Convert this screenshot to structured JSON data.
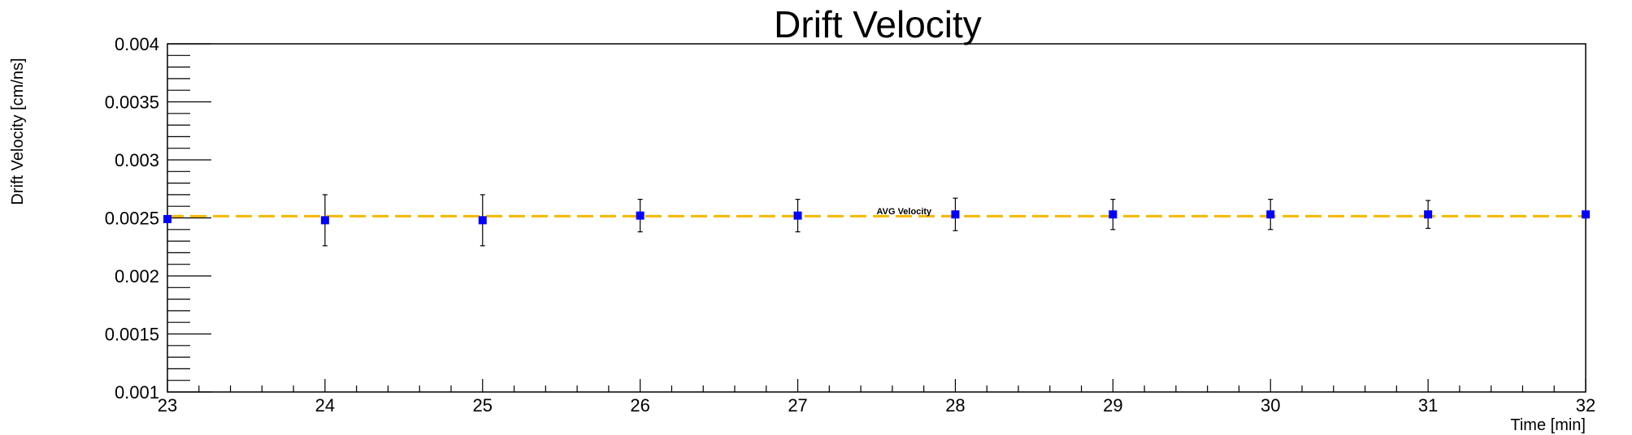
{
  "chart_data": {
    "type": "scatter",
    "title": "Drift Velocity",
    "xlabel": "Time [min]",
    "ylabel": "Drift Velocity [cm/ns]",
    "xlim": [
      23,
      32
    ],
    "ylim": [
      0.001,
      0.004
    ],
    "x_ticks": [
      "23",
      "24",
      "25",
      "26",
      "27",
      "28",
      "29",
      "30",
      "31",
      "32"
    ],
    "y_ticks": [
      "0.001",
      "0.0015",
      "0.002",
      "0.0025",
      "0.003",
      "0.0035",
      "0.004"
    ],
    "grid": false,
    "series": [
      {
        "marker": "square",
        "color": "#0000ff",
        "points": [
          {
            "x": 23,
            "y": 0.00249,
            "err": 0.0
          },
          {
            "x": 24,
            "y": 0.00248,
            "err": 0.00022
          },
          {
            "x": 25,
            "y": 0.00248,
            "err": 0.00022
          },
          {
            "x": 26,
            "y": 0.00252,
            "err": 0.00014
          },
          {
            "x": 27,
            "y": 0.00252,
            "err": 0.00014
          },
          {
            "x": 28,
            "y": 0.00253,
            "err": 0.00014
          },
          {
            "x": 29,
            "y": 0.00253,
            "err": 0.00013
          },
          {
            "x": 30,
            "y": 0.00253,
            "err": 0.00013
          },
          {
            "x": 31,
            "y": 0.00253,
            "err": 0.00012
          },
          {
            "x": 32,
            "y": 0.00253,
            "err": 0.0
          }
        ]
      }
    ],
    "reference_line": {
      "y": 0.002515,
      "style": "dashed",
      "color": "#f5b800"
    },
    "annotation": {
      "text": "AVG Velocity",
      "x": 27.5,
      "y": 0.002545
    }
  }
}
